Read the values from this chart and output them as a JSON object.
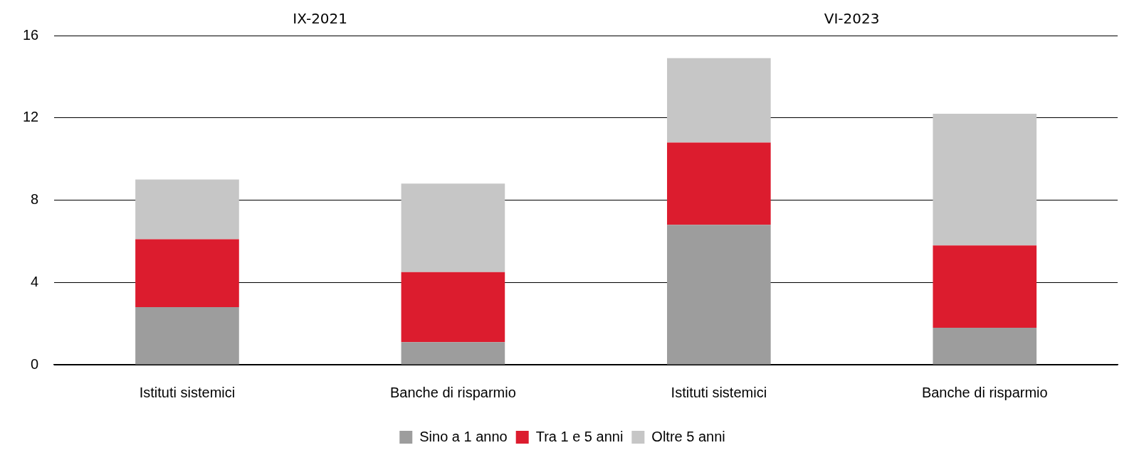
{
  "chart_data": {
    "type": "bar",
    "stacked": true,
    "categories": [
      "Istituti sistemici",
      "Banche di risparmio",
      "Istituti sistemici",
      "Banche di risparmio"
    ],
    "series": [
      {
        "name": "Sino a 1 anno",
        "color": "#9d9d9d",
        "values": [
          2.8,
          1.1,
          6.8,
          1.8
        ]
      },
      {
        "name": "Tra 1 e 5 anni",
        "color": "#dc1c2e",
        "values": [
          3.3,
          3.4,
          4.0,
          4.0
        ]
      },
      {
        "name": "Oltre 5 anni",
        "color": "#c6c6c6",
        "values": [
          2.9,
          4.3,
          4.1,
          6.4
        ]
      }
    ],
    "ylim": [
      0,
      16
    ],
    "yticks": [
      0,
      4,
      8,
      12,
      16
    ],
    "grid": "y",
    "legend": "bottom",
    "annotations": [
      "IX-2021",
      "VI-2023"
    ]
  }
}
